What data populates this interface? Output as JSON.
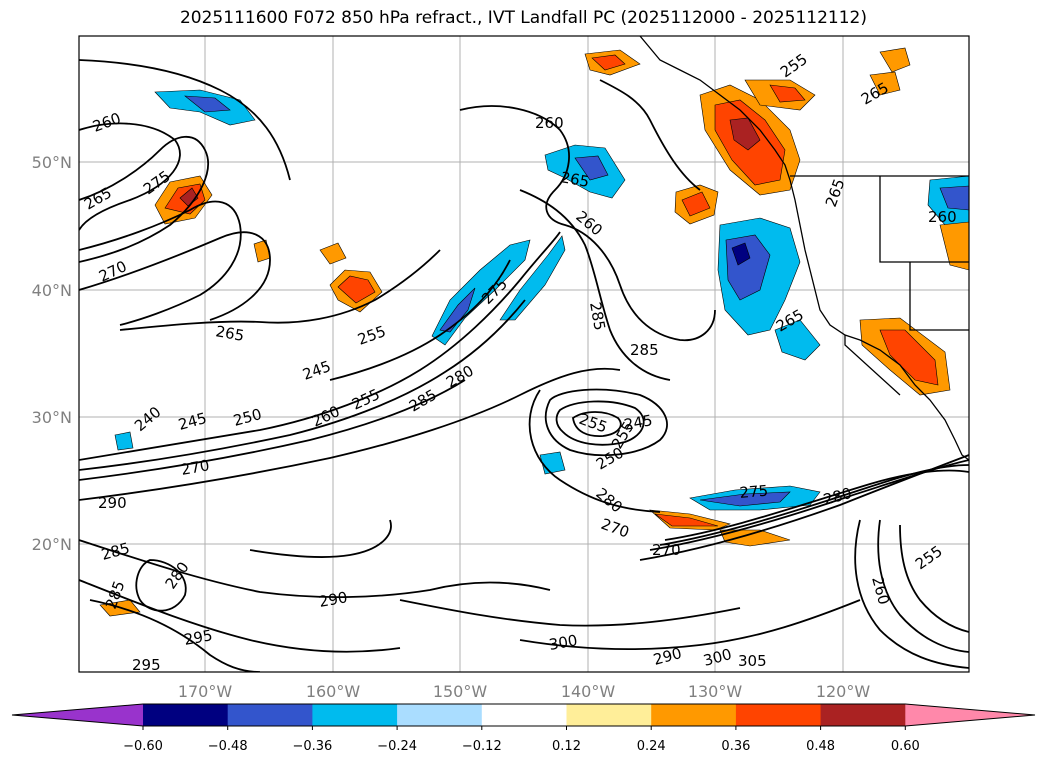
{
  "title": "2025111600 F072 850 hPa refract., IVT Landfall PC (2025112000 - 2025112112)",
  "map": {
    "lat_labels": [
      "50°N",
      "40°N",
      "30°N",
      "20°N"
    ],
    "lon_labels": [
      "170°W",
      "160°W",
      "150°W",
      "140°W",
      "130°W",
      "120°W"
    ],
    "contour_labels": [
      "260",
      "265",
      "275",
      "280",
      "270",
      "265",
      "255",
      "245",
      "240",
      "245",
      "250",
      "260",
      "255",
      "270",
      "290",
      "285",
      "280",
      "285",
      "295",
      "290",
      "295",
      "300",
      "290",
      "300",
      "305",
      "275",
      "280",
      "285",
      "260",
      "265",
      "285",
      "280",
      "275",
      "285",
      "260",
      "255",
      "250",
      "245",
      "255",
      "265",
      "270",
      "270",
      "280",
      "260",
      "255",
      "265",
      "255",
      "265",
      "260"
    ]
  },
  "colorbar": {
    "ticks": [
      "−0.60",
      "−0.48",
      "−0.36",
      "−0.24",
      "−0.12",
      "0.12",
      "0.24",
      "0.36",
      "0.48",
      "0.60"
    ],
    "colors": [
      "#9933cc",
      "#000080",
      "#3355cc",
      "#00bbee",
      "#aaddff",
      "#ffffff",
      "#ffee99",
      "#ff9900",
      "#ff4400",
      "#aa2222",
      "#ff88aa"
    ]
  }
}
